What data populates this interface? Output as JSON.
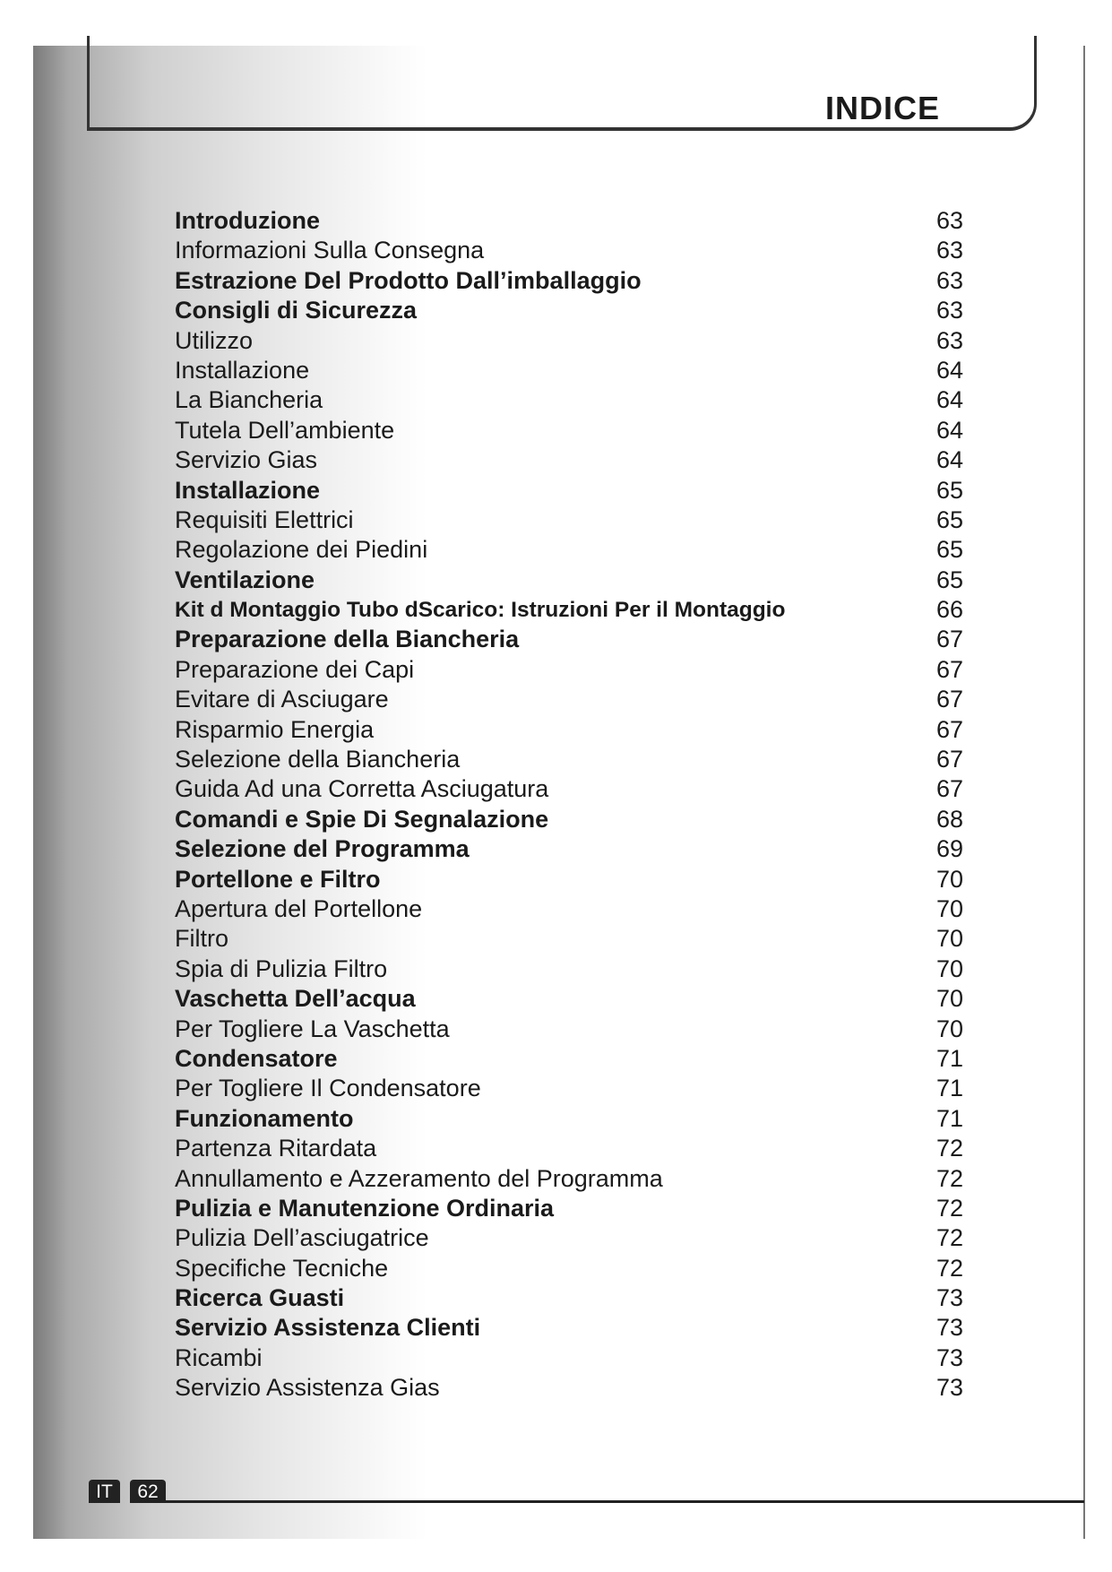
{
  "header": {
    "title": "INDICE"
  },
  "toc": [
    {
      "label": "Introduzione",
      "page": "63",
      "bold": true
    },
    {
      "label": "Informazioni Sulla Consegna",
      "page": "63",
      "bold": false
    },
    {
      "label": "Estrazione Del Prodotto Dall’imballaggio",
      "page": "63",
      "bold": true
    },
    {
      "label": "Consigli di Sicurezza",
      "page": "63",
      "bold": true
    },
    {
      "label": "Utilizzo",
      "page": "63",
      "bold": false
    },
    {
      "label": "Installazione",
      "page": "64",
      "bold": false
    },
    {
      "label": "La Biancheria",
      "page": "64",
      "bold": false
    },
    {
      "label": "Tutela Dell’ambiente",
      "page": "64",
      "bold": false
    },
    {
      "label": "Servizio Gias",
      "page": "64",
      "bold": false
    },
    {
      "label": "Installazione",
      "page": "65",
      "bold": true
    },
    {
      "label": "Requisiti Elettrici",
      "page": "65",
      "bold": false
    },
    {
      "label": "Regolazione dei Piedini",
      "page": "65",
      "bold": false
    },
    {
      "label": "Ventilazione",
      "page": "65",
      "bold": true
    },
    {
      "label": "Kit d Montaggio Tubo  dScarico: Istruzioni Per il Montaggio",
      "page": "66",
      "bold": true
    },
    {
      "label": "Preparazione della Biancheria",
      "page": "67",
      "bold": true
    },
    {
      "label": "Preparazione dei Capi",
      "page": "67",
      "bold": false
    },
    {
      "label": "Evitare di Asciugare",
      "page": "67",
      "bold": false
    },
    {
      "label": "Risparmio Energia",
      "page": "67",
      "bold": false
    },
    {
      "label": "Selezione della Biancheria",
      "page": "67",
      "bold": false
    },
    {
      "label": "Guida Ad una Corretta Asciugatura",
      "page": "67",
      "bold": false
    },
    {
      "label": "Comandi e Spie Di Segnalazione",
      "page": "68",
      "bold": true
    },
    {
      "label": "Selezione del Programma",
      "page": "69",
      "bold": true
    },
    {
      "label": "Portellone e Filtro",
      "page": "70",
      "bold": true
    },
    {
      "label": "Apertura del Portellone",
      "page": "70",
      "bold": false
    },
    {
      "label": "Filtro",
      "page": "70",
      "bold": false
    },
    {
      "label": "Spia di Pulizia Filtro",
      "page": "70",
      "bold": false
    },
    {
      "label": "Vaschetta Dell’acqua",
      "page": "70",
      "bold": true
    },
    {
      "label": "Per Togliere La Vaschetta",
      "page": "70",
      "bold": false
    },
    {
      "label": "Condensatore",
      "page": "71",
      "bold": true
    },
    {
      "label": "Per Togliere Il Condensatore",
      "page": "71",
      "bold": false
    },
    {
      "label": "Funzionamento",
      "page": "71",
      "bold": true
    },
    {
      "label": "Partenza Ritardata",
      "page": "72",
      "bold": false
    },
    {
      "label": "Annullamento e Azzeramento del Programma",
      "page": "72",
      "bold": false
    },
    {
      "label": "Pulizia e Manutenzione Ordinaria",
      "page": "72",
      "bold": true
    },
    {
      "label": "Pulizia Dell’asciugatrice",
      "page": "72",
      "bold": false
    },
    {
      "label": "Specifiche Tecniche",
      "page": "72",
      "bold": false
    },
    {
      "label": "Ricerca Guasti",
      "page": "73",
      "bold": true
    },
    {
      "label": "Servizio Assistenza Clienti",
      "page": "73",
      "bold": true
    },
    {
      "label": "Ricambi",
      "page": "73",
      "bold": false
    },
    {
      "label": "Servizio Assistenza Gias",
      "page": "73",
      "bold": false
    }
  ],
  "footer": {
    "language": "IT",
    "page_number": "62"
  }
}
